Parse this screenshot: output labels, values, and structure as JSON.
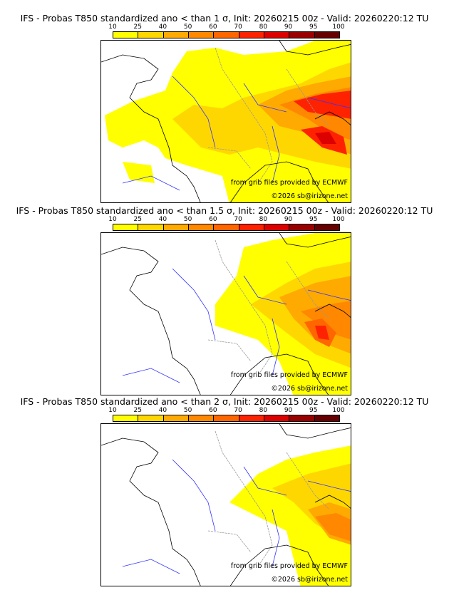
{
  "panels": [
    {
      "title": "IFS - Probas T850  standardized ano < than 1 σ, Init: 20260215 00z - Valid: 20260220:12 TU",
      "coverage": "large"
    },
    {
      "title": "IFS - Probas T850  standardized ano < than 1.5 σ, Init: 20260215 00z - Valid: 20260220:12 TU",
      "coverage": "medium"
    },
    {
      "title": "IFS - Probas T850  standardized ano < than 2 σ, Init: 20260215 00z - Valid: 20260220:12 TU",
      "coverage": "small"
    }
  ],
  "colorbar": {
    "ticks": [
      "10",
      "25",
      "40",
      "50",
      "60",
      "70",
      "80",
      "90",
      "95",
      "100"
    ],
    "colors": [
      "#ffff00",
      "#ffd700",
      "#ffaa00",
      "#ff8800",
      "#ff6600",
      "#ff2200",
      "#dd0000",
      "#990000",
      "#660000"
    ]
  },
  "credits": {
    "source": "from grib files provided by ECMWF",
    "copyright": "©2026 sb@irizone.net"
  }
}
